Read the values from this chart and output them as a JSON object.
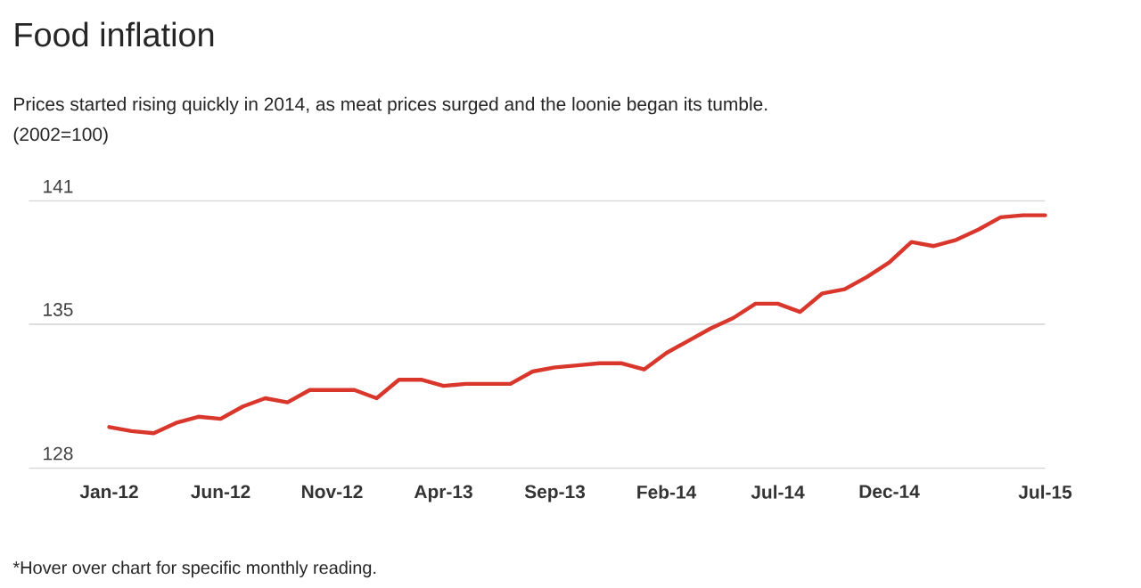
{
  "chart_data": {
    "type": "line",
    "title": "Food inflation",
    "subtitle": "Prices started rising quickly in 2014, as meat prices surged and the loonie began its tumble.",
    "ylabel": "(2002=100)",
    "annotations": [
      "*Hover over chart for specific monthly reading."
    ],
    "categories": [
      "Jan-12",
      null,
      null,
      null,
      null,
      "Jun-12",
      null,
      null,
      null,
      null,
      "Nov-12",
      null,
      null,
      null,
      null,
      "Apr-13",
      null,
      null,
      null,
      null,
      "Sep-13",
      null,
      null,
      null,
      null,
      "Feb-14",
      null,
      null,
      null,
      null,
      "Jul-14",
      null,
      null,
      null,
      null,
      "Dec-14",
      null,
      null,
      null,
      null,
      null,
      null,
      "Jul-15"
    ],
    "series": [
      {
        "color": "#d9372c",
        "values": [
          130.0,
          129.8,
          129.7,
          130.2,
          130.5,
          130.4,
          131.0,
          131.4,
          131.2,
          131.8,
          131.8,
          131.8,
          131.4,
          132.3,
          132.3,
          132.0,
          132.1,
          132.1,
          132.1,
          132.7,
          132.9,
          133.0,
          133.1,
          133.1,
          132.8,
          133.6,
          134.2,
          134.8,
          135.3,
          136.0,
          136.0,
          135.6,
          136.5,
          136.7,
          137.3,
          138.0,
          139.0,
          138.8,
          139.1,
          139.6,
          140.2,
          140.3,
          140.3
        ]
      }
    ],
    "ylim": [
      128,
      141
    ],
    "yticks": [
      128,
      135,
      141
    ],
    "grid": "y"
  }
}
